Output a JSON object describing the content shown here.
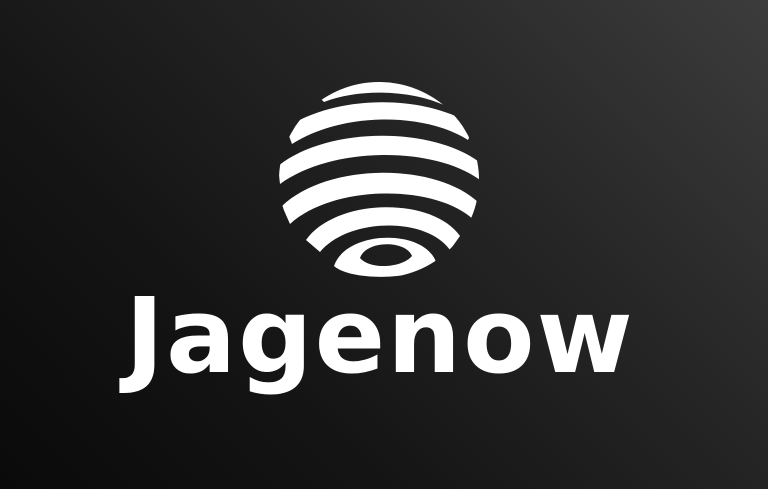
{
  "brand": {
    "name": "Jagenow",
    "logo_icon": "striped-globe-icon",
    "colors": {
      "foreground": "#ffffff",
      "background_dark": "#0a0a0a",
      "background_light": "#3c3c3c"
    }
  }
}
